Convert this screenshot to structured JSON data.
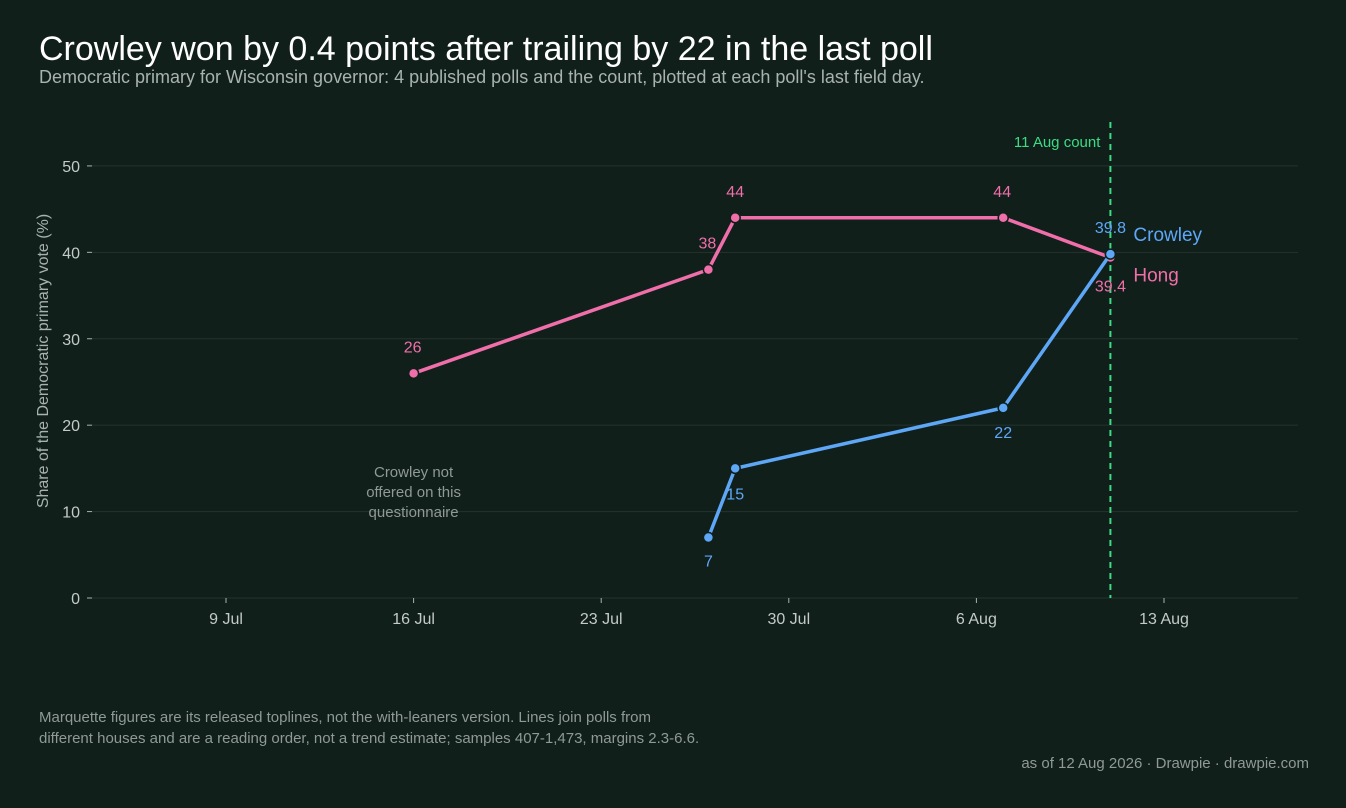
{
  "header": {
    "title": "Crowley won by 0.4 points after trailing by 22 in the last poll",
    "subtitle": "Democratic primary for Wisconsin governor: 4 published polls and the count, plotted at each poll's last field day."
  },
  "chart_data": {
    "type": "line",
    "title": "Crowley won by 0.4 points after trailing by 22 in the last poll",
    "ylabel": "Share of the Democratic primary vote (%)",
    "xlabel": "",
    "ylim": [
      0,
      53
    ],
    "xlim": [
      "2026-07-04",
      "2026-08-18"
    ],
    "yticks": [
      0,
      10,
      20,
      30,
      40,
      50
    ],
    "xticks": [
      {
        "date": "2026-07-09",
        "label": "9 Jul"
      },
      {
        "date": "2026-07-16",
        "label": "16 Jul"
      },
      {
        "date": "2026-07-23",
        "label": "23 Jul"
      },
      {
        "date": "2026-07-30",
        "label": "30 Jul"
      },
      {
        "date": "2026-08-06",
        "label": "6 Aug"
      },
      {
        "date": "2026-08-13",
        "label": "13 Aug"
      }
    ],
    "grid": "horizontal",
    "series": [
      {
        "name": "Hong",
        "color": "#f06eaa",
        "points": [
          {
            "x": "2026-07-16",
            "y": 26,
            "label": "26"
          },
          {
            "x": "2026-07-27",
            "y": 38,
            "label": "38"
          },
          {
            "x": "2026-07-28",
            "y": 44,
            "label": "44"
          },
          {
            "x": "2026-08-07",
            "y": 44,
            "label": "44"
          },
          {
            "x": "2026-08-11",
            "y": 39.4,
            "label": "39.4"
          }
        ]
      },
      {
        "name": "Crowley",
        "color": "#5ea7f7",
        "points": [
          {
            "x": "2026-07-27",
            "y": 7,
            "label": "7"
          },
          {
            "x": "2026-07-28",
            "y": 15,
            "label": "15"
          },
          {
            "x": "2026-08-07",
            "y": 22,
            "label": "22"
          },
          {
            "x": "2026-08-11",
            "y": 39.8,
            "label": "39.8"
          }
        ]
      }
    ],
    "reference_line": {
      "x": "2026-08-11",
      "label": "11 Aug count",
      "color": "#3ddc84"
    },
    "annotations": [
      {
        "text": "Crowley not offered on this questionnaire",
        "lines": [
          "Crowley not",
          "offered on this",
          "questionnaire"
        ],
        "x": "2026-07-16",
        "y": 12.5
      }
    ]
  },
  "footer": {
    "note_line1": "Marquette figures are its released toplines, not the with-leaners version. Lines join polls from",
    "note_line2": "different houses and are a reading order, not a trend estimate; samples 407-1,473, margins 2.3-6.6.",
    "credit": "as of 12 Aug 2026  ·  Drawpie · drawpie.com"
  }
}
